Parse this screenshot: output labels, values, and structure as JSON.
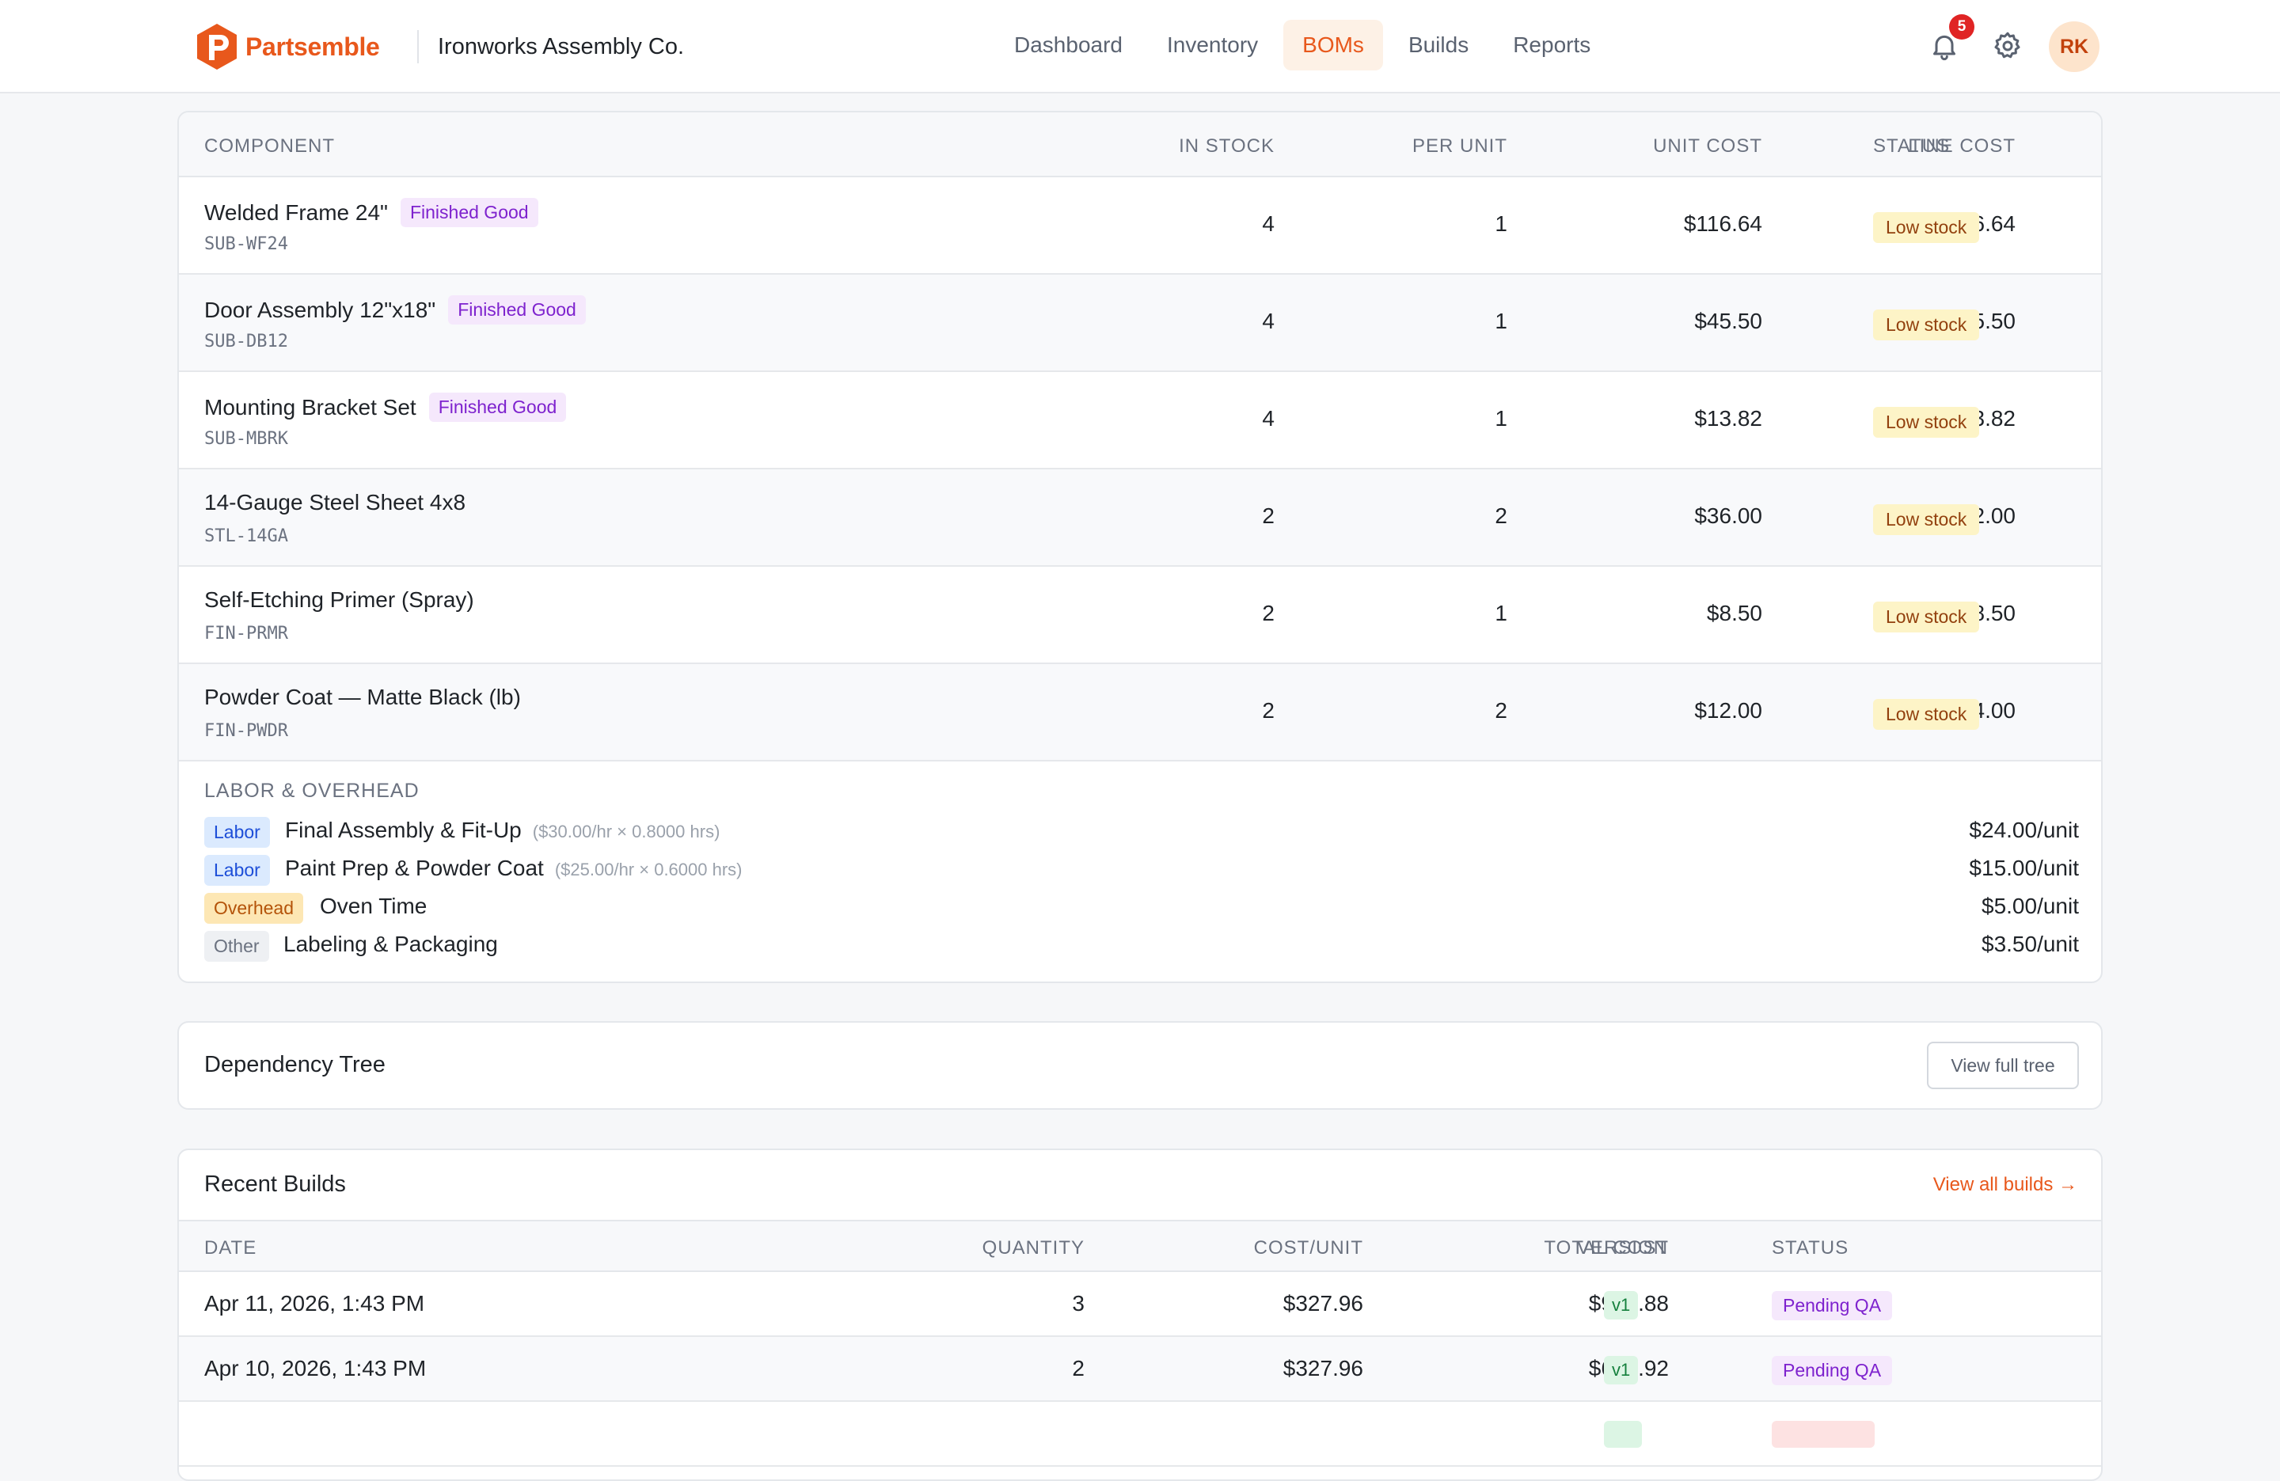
{
  "brand": {
    "name": "Partsemble",
    "org": "Ironworks Assembly Co.",
    "accent": "#e8581c"
  },
  "nav": {
    "links": [
      "Dashboard",
      "Inventory",
      "BOMs",
      "Builds",
      "Reports"
    ],
    "active": "BOMs",
    "notifications": "5",
    "avatar_initials": "RK"
  },
  "components": {
    "headers": {
      "component": "COMPONENT",
      "in_stock": "IN STOCK",
      "per_unit": "PER UNIT",
      "unit_cost": "UNIT COST",
      "line_cost": "LINE COST",
      "status": "STATUS"
    },
    "rows": [
      {
        "name": "Welded Frame 24\"",
        "tag": "Finished Good",
        "sku": "SUB-WF24",
        "in_stock": "4",
        "per_unit": "1",
        "unit_cost": "$116.64",
        "line_cost": "$116.64",
        "status": "Low stock"
      },
      {
        "name": "Door Assembly 12\"x18\"",
        "tag": "Finished Good",
        "sku": "SUB-DB12",
        "in_stock": "4",
        "per_unit": "1",
        "unit_cost": "$45.50",
        "line_cost": "$45.50",
        "status": "Low stock"
      },
      {
        "name": "Mounting Bracket Set",
        "tag": "Finished Good",
        "sku": "SUB-MBRK",
        "in_stock": "4",
        "per_unit": "1",
        "unit_cost": "$13.82",
        "line_cost": "$13.82",
        "status": "Low stock"
      },
      {
        "name": "14-Gauge Steel Sheet 4x8",
        "tag": "",
        "sku": "STL-14GA",
        "in_stock": "2",
        "per_unit": "2",
        "unit_cost": "$36.00",
        "line_cost": "$72.00",
        "status": "Low stock"
      },
      {
        "name": "Self-Etching Primer (Spray)",
        "tag": "",
        "sku": "FIN-PRMR",
        "in_stock": "2",
        "per_unit": "1",
        "unit_cost": "$8.50",
        "line_cost": "$8.50",
        "status": "Low stock"
      },
      {
        "name": "Powder Coat — Matte Black (lb)",
        "tag": "",
        "sku": "FIN-PWDR",
        "in_stock": "2",
        "per_unit": "2",
        "unit_cost": "$12.00",
        "line_cost": "$24.00",
        "status": "Low stock"
      }
    ]
  },
  "labor": {
    "title": "LABOR & OVERHEAD",
    "rows": [
      {
        "type": "Labor",
        "name": "Final Assembly & Fit-Up",
        "formula": "($30.00/hr × 0.8000 hrs)",
        "cost": "$24.00/unit"
      },
      {
        "type": "Labor",
        "name": "Paint Prep & Powder Coat",
        "formula": "($25.00/hr × 0.6000 hrs)",
        "cost": "$15.00/unit"
      },
      {
        "type": "Overhead",
        "name": "Oven Time",
        "formula": "",
        "cost": "$5.00/unit"
      },
      {
        "type": "Other",
        "name": "Labeling & Packaging",
        "formula": "",
        "cost": "$3.50/unit"
      }
    ]
  },
  "dependency": {
    "title": "Dependency Tree",
    "button": "View full tree"
  },
  "builds": {
    "title": "Recent Builds",
    "link": "View all builds →",
    "headers": {
      "date": "DATE",
      "quantity": "QUANTITY",
      "cost_unit": "COST/UNIT",
      "total_cost": "TOTAL COST",
      "version": "VERSION",
      "status": "STATUS"
    },
    "rows": [
      {
        "date": "Apr 11, 2026, 1:43 PM",
        "quantity": "3",
        "cost_unit": "$327.96",
        "total_cost": "$983.88",
        "version": "v1",
        "status": "Pending QA"
      },
      {
        "date": "Apr 10, 2026, 1:43 PM",
        "quantity": "2",
        "cost_unit": "$327.96",
        "total_cost": "$655.92",
        "version": "v1",
        "status": "Pending QA"
      }
    ]
  }
}
